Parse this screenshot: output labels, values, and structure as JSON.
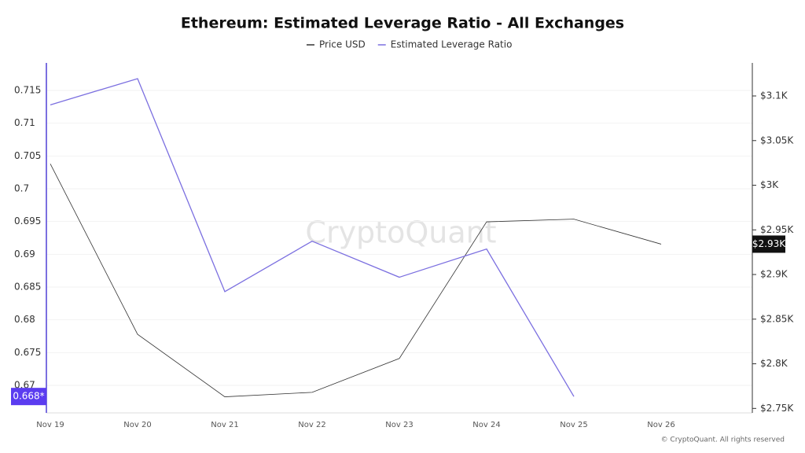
{
  "chart_data": {
    "type": "line",
    "title": "Ethereum: Estimated Leverage Ratio - All Exchanges",
    "watermark": "CryptoQuant",
    "footer": "© CryptoQuant. All rights reserved",
    "categories": [
      "Nov 19",
      "Nov 20",
      "Nov 21",
      "Nov 22",
      "Nov 23",
      "Nov 24",
      "Nov 25",
      "Nov 26"
    ],
    "series": [
      {
        "name": "Price USD",
        "color": "#333333",
        "axis": "y2",
        "values": [
          3024,
          2833,
          2763,
          2768,
          2806,
          2959,
          2962,
          2934
        ],
        "value_labels": [
          null,
          null,
          null,
          null,
          null,
          null,
          null,
          "$2.93K"
        ]
      },
      {
        "name": "Estimated Leverage Ratio",
        "color": "#7b6fe0",
        "values": [
          0.7128,
          0.7168,
          0.6843,
          0.692,
          0.6865,
          0.6908,
          0.6683,
          null
        ],
        "value_labels": [
          null,
          null,
          null,
          null,
          null,
          null,
          "0.668*",
          null
        ]
      }
    ],
    "ylim": [
      0.6658,
      0.7192
    ],
    "yticks": [
      0.67,
      0.675,
      0.68,
      0.685,
      0.69,
      0.695,
      0.7,
      0.705,
      0.71,
      0.715
    ],
    "y2lim": [
      2745,
      3137
    ],
    "y2ticks": [
      {
        "value": 2750,
        "label": "$2.75K"
      },
      {
        "value": 2800,
        "label": "$2.8K"
      },
      {
        "value": 2850,
        "label": "$2.85K"
      },
      {
        "value": 2900,
        "label": "$2.9K"
      },
      {
        "value": 2950,
        "label": "$2.95K"
      },
      {
        "value": 3000,
        "label": "$3K"
      },
      {
        "value": 3050,
        "label": "$3.05K"
      },
      {
        "value": 3100,
        "label": "$3.1K"
      }
    ],
    "grid": true
  }
}
